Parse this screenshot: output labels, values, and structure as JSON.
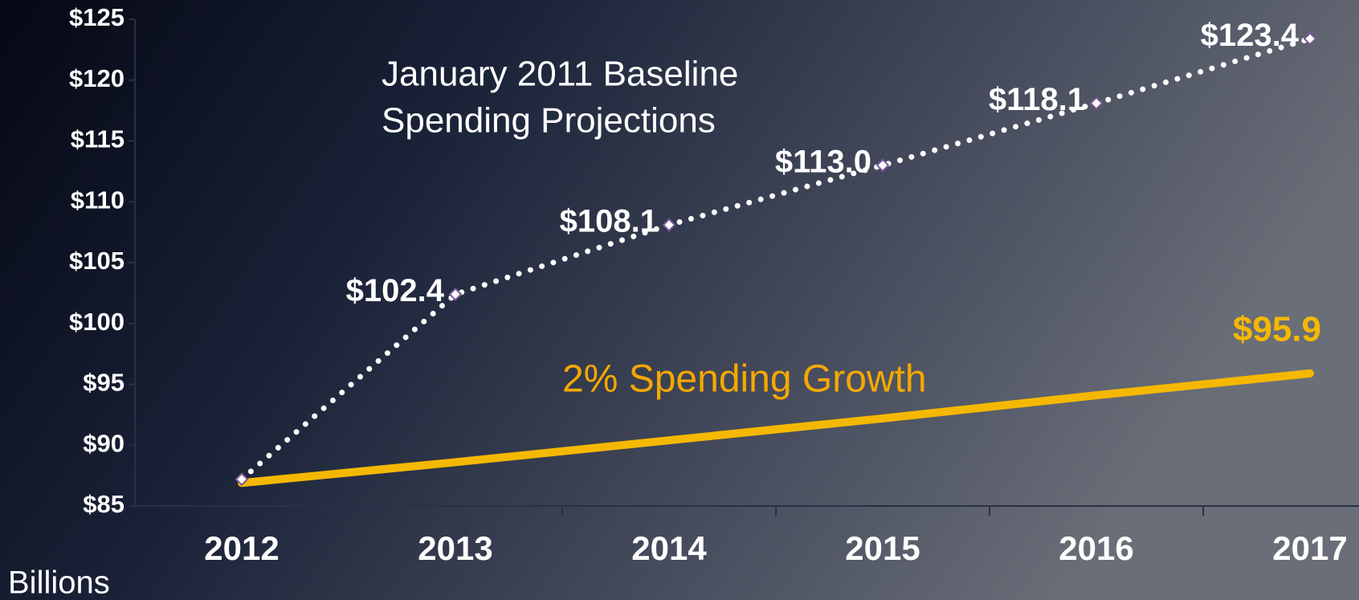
{
  "chart_data": {
    "type": "line",
    "categories": [
      "2012",
      "2013",
      "2014",
      "2015",
      "2016",
      "2017"
    ],
    "series": [
      {
        "color": "#ffffff",
        "style": "dotted",
        "values": [
          87.2,
          102.4,
          108.1,
          113.0,
          118.1,
          123.4
        ],
        "value_labels": [
          null,
          "$102.4",
          "$108.1",
          "$113.0",
          "$118.1",
          "$123.4"
        ]
      },
      {
        "color": "#f5b800",
        "style": "solid",
        "values": [
          86.9,
          88.6,
          90.4,
          92.2,
          94.1,
          95.9
        ],
        "value_labels": [
          null,
          null,
          null,
          null,
          null,
          "$95.9"
        ]
      }
    ],
    "annotations": [
      "January 2011 Baseline",
      "Spending Projections",
      "2% Spending Growth"
    ],
    "y_unit": "Billions",
    "ylim": [
      85,
      125
    ],
    "yticks": [
      {
        "value": 85,
        "label": "$85"
      },
      {
        "value": 90,
        "label": "$90"
      },
      {
        "value": 95,
        "label": "$95"
      },
      {
        "value": 100,
        "label": "$100"
      },
      {
        "value": 105,
        "label": "$105"
      },
      {
        "value": 110,
        "label": "$110"
      },
      {
        "value": 115,
        "label": "$115"
      },
      {
        "value": 120,
        "label": "$120"
      },
      {
        "value": 125,
        "label": "$125"
      }
    ],
    "grid": false
  }
}
